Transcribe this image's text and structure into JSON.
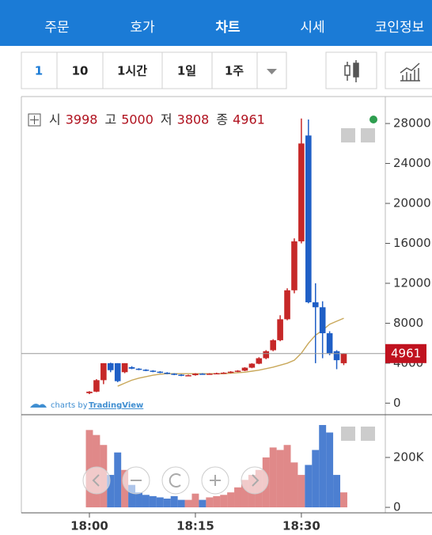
{
  "nav": {
    "tabs": [
      "주문",
      "호가",
      "차트",
      "시세",
      "코인정보"
    ]
  },
  "toolbar": {
    "intervals": [
      "1",
      "10",
      "1시간",
      "1일",
      "1주"
    ]
  },
  "chart_data": {
    "type": "candlestick",
    "legend_labels": [
      "시",
      "고",
      "저",
      "종"
    ],
    "categories": [
      "18:00",
      null,
      null,
      null,
      null,
      null,
      null,
      null,
      null,
      null,
      null,
      null,
      null,
      null,
      null,
      "18:15",
      null,
      null,
      null,
      null,
      null,
      null,
      null,
      null,
      null,
      null,
      null,
      null,
      null,
      null,
      "18:30",
      null,
      null,
      null,
      null,
      null,
      null
    ],
    "open": [
      1000,
      1150,
      2300,
      4000,
      4000,
      3100,
      3600,
      3450,
      3350,
      3250,
      3150,
      3050,
      2950,
      2850,
      2750,
      2800,
      2950,
      2900,
      2950,
      3000,
      3050,
      3150,
      3250,
      3550,
      3950,
      4500,
      5300,
      6300,
      8400,
      11300,
      16200,
      26800,
      10100,
      9600,
      7000,
      5200,
      3998
    ],
    "high": [
      1200,
      2400,
      4000,
      4050,
      4000,
      4000,
      3700,
      3500,
      3400,
      3300,
      3200,
      3100,
      3000,
      2900,
      2850,
      3000,
      3000,
      3000,
      3050,
      3100,
      3200,
      3300,
      3600,
      4000,
      4600,
      5300,
      6400,
      8800,
      11500,
      16500,
      28500,
      28400,
      12000,
      10200,
      7200,
      5300,
      5000
    ],
    "low": [
      900,
      1100,
      1900,
      3100,
      2100,
      3000,
      3400,
      3300,
      3200,
      3100,
      3000,
      2900,
      2800,
      2700,
      2700,
      2750,
      2850,
      2850,
      2900,
      2950,
      3000,
      3100,
      3200,
      3500,
      3900,
      4400,
      5200,
      6200,
      8300,
      11000,
      16000,
      10000,
      4000,
      4500,
      4800,
      3400,
      3808
    ],
    "close": [
      1150,
      2300,
      4000,
      3300,
      2200,
      4000,
      3450,
      3350,
      3250,
      3150,
      3050,
      2950,
      2850,
      2750,
      2800,
      2950,
      2900,
      2950,
      3000,
      3050,
      3150,
      3250,
      3550,
      3950,
      4500,
      5200,
      6300,
      8400,
      11300,
      16200,
      26000,
      10100,
      9600,
      7000,
      5000,
      4300,
      4961
    ],
    "up_color": "#c62828",
    "down_color": "#1f5fc6",
    "ylim": [
      -1000,
      30700
    ],
    "yticks": [
      0,
      4000,
      8000,
      12000,
      16000,
      20000,
      24000,
      28000
    ],
    "moving_average": {
      "color": "#c9a85a",
      "values": [
        null,
        null,
        null,
        null,
        1700,
        2000,
        2300,
        2500,
        2650,
        2800,
        2900,
        2950,
        2950,
        2950,
        2950,
        2950,
        2950,
        2950,
        2950,
        2950,
        3000,
        3050,
        3100,
        3200,
        3300,
        3450,
        3600,
        3800,
        4000,
        4300,
        5000,
        6000,
        6800,
        7300,
        7900,
        8200,
        8500
      ]
    },
    "volume": {
      "values": [
        310000,
        290000,
        250000,
        130000,
        220000,
        150000,
        90000,
        60000,
        50000,
        45000,
        40000,
        35000,
        45000,
        30000,
        30000,
        55000,
        30000,
        40000,
        45000,
        50000,
        60000,
        80000,
        110000,
        130000,
        150000,
        200000,
        240000,
        230000,
        250000,
        180000,
        130000,
        170000,
        230000,
        330000,
        300000,
        130000,
        60000
      ],
      "ylim": [
        -22000,
        365000
      ],
      "yticks": [
        0,
        {
          "value": 200000,
          "label": "200K"
        }
      ]
    },
    "attribution": {
      "prefix": "charts by",
      "link": "TradingView"
    }
  }
}
